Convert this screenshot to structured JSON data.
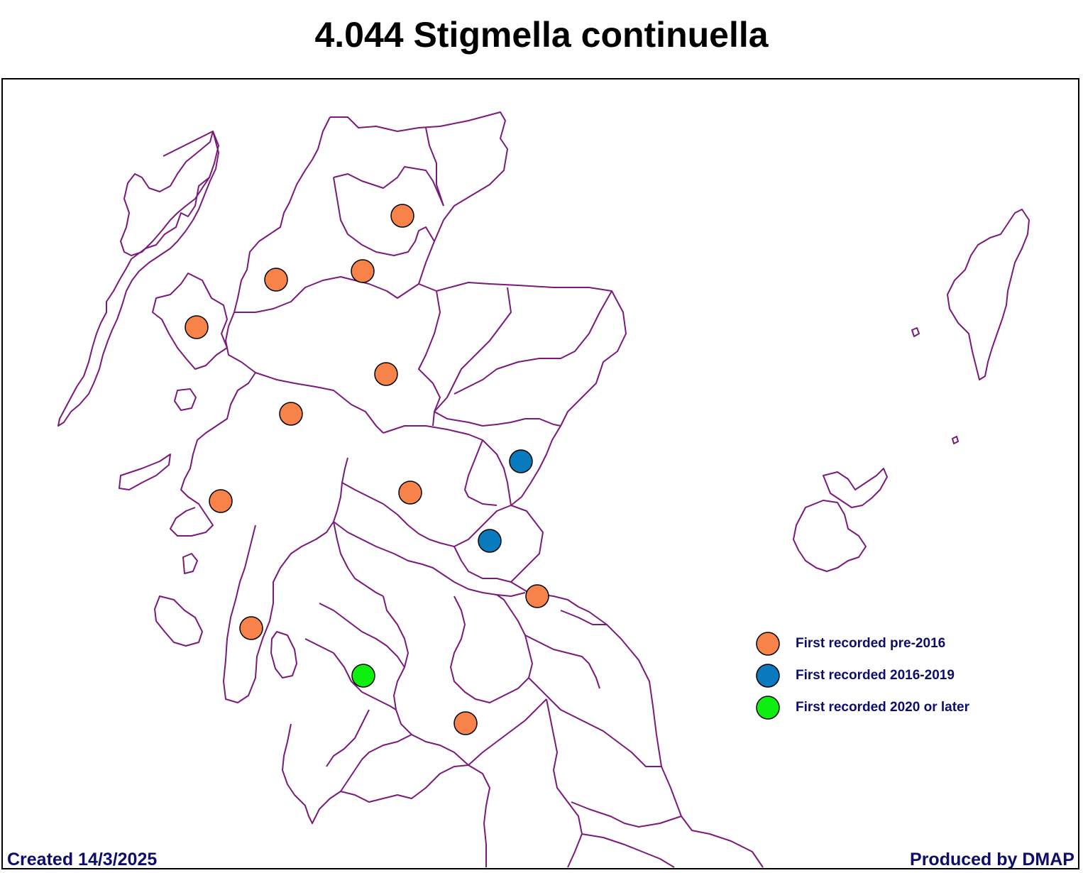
{
  "title": "4.044 Stigmella continuella",
  "footer": {
    "created": "Created 14/3/2025",
    "producer": "Produced by DMAP"
  },
  "colors": {
    "boundary": "#7a1a7a",
    "pre2016": "#f7834a",
    "y2016_2019": "#0a7abf",
    "y2020_later": "#0fef0f"
  },
  "legend": [
    {
      "label": "First recorded pre-2016",
      "category": "pre2016"
    },
    {
      "label": "First recorded 2016-2019",
      "category": "y2016_2019"
    },
    {
      "label": "First recorded 2020 or later",
      "category": "y2020_later"
    }
  ],
  "records": [
    {
      "category": "pre2016"
    },
    {
      "category": "pre2016"
    },
    {
      "category": "pre2016"
    },
    {
      "category": "pre2016"
    },
    {
      "category": "pre2016"
    },
    {
      "category": "pre2016"
    },
    {
      "category": "pre2016"
    },
    {
      "category": "pre2016"
    },
    {
      "category": "pre2016"
    },
    {
      "category": "pre2016"
    },
    {
      "category": "pre2016"
    },
    {
      "category": "y2016_2019"
    },
    {
      "category": "y2016_2019"
    },
    {
      "category": "y2020_later"
    }
  ]
}
